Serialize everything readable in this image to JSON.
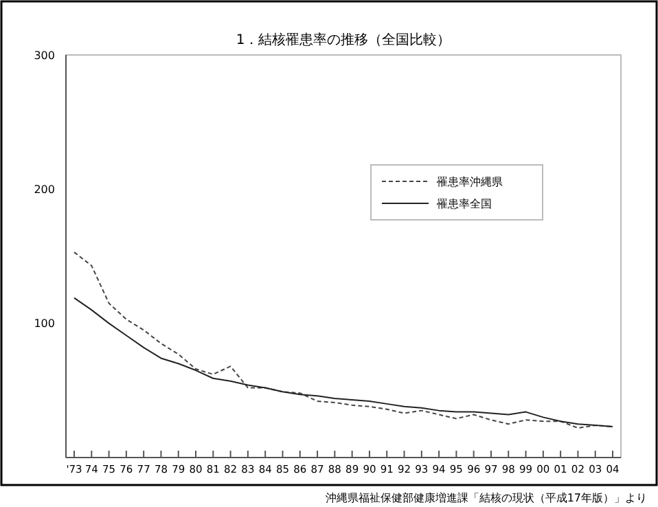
{
  "chart_data": {
    "type": "line",
    "title": "1．結核罹患率の推移（全国比較）",
    "categories": [
      "'73",
      "74",
      "75",
      "76",
      "77",
      "78",
      "79",
      "80",
      "81",
      "82",
      "83",
      "84",
      "85",
      "86",
      "87",
      "88",
      "89",
      "90",
      "91",
      "92",
      "93",
      "94",
      "95",
      "96",
      "97",
      "98",
      "99",
      "00",
      "01",
      "02",
      "03",
      "04"
    ],
    "series": [
      {
        "name": "罹患率沖縄県",
        "color": "#444444",
        "line_style": "dashed",
        "values": [
          153,
          143,
          115,
          103,
          95,
          85,
          77,
          66,
          62,
          68,
          52,
          52,
          49,
          48,
          42,
          41,
          39,
          38,
          36,
          33,
          35,
          32,
          29,
          32,
          28,
          25,
          28,
          27,
          27,
          22,
          24,
          23
        ]
      },
      {
        "name": "罹患率全国",
        "color": "#222222",
        "line_style": "solid",
        "values": [
          119,
          110,
          100,
          91,
          82,
          74,
          70,
          65,
          59,
          57,
          54,
          52,
          49,
          47,
          46,
          44,
          43,
          42,
          40,
          38,
          37,
          35,
          34,
          34,
          33,
          32,
          34,
          30,
          27,
          25,
          24,
          23
        ]
      }
    ],
    "ylim": [
      0,
      300
    ],
    "yticks": [
      100,
      200,
      300
    ],
    "grid": false,
    "legend": "right",
    "marker": "none",
    "annotations": [
      "沖縄県福祉保健部健康増進課「結核の現状（平成17年版）」より"
    ]
  }
}
